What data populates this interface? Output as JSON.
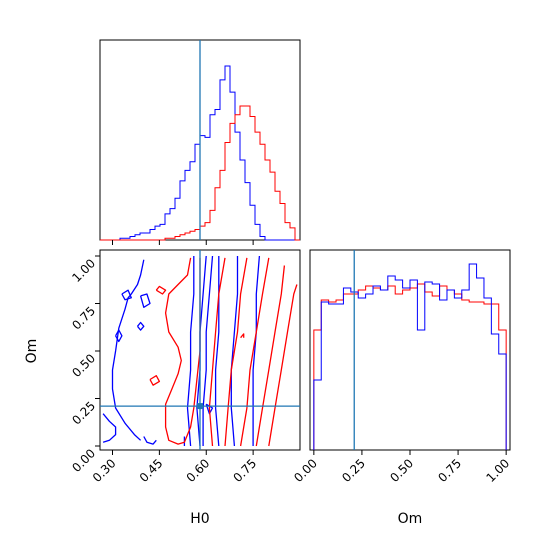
{
  "chart_data": [
    {
      "type": "histogram",
      "panel": "top-left",
      "x_param": "H0",
      "xlim": [
        0.26,
        0.9
      ],
      "truth": 0.58,
      "series": [
        {
          "color": "#0000ff",
          "bins_x": [
            0.26,
            0.9
          ],
          "step_y": [
            0.0,
            0.0,
            0.0,
            0.0,
            0.01,
            0.01,
            0.02,
            0.03,
            0.04,
            0.04,
            0.06,
            0.08,
            0.09,
            0.15,
            0.18,
            0.24,
            0.34,
            0.4,
            0.45,
            0.55,
            0.6,
            0.59,
            0.72,
            0.75,
            0.92,
            1.0,
            0.85,
            0.62,
            0.46,
            0.33,
            0.2,
            0.09,
            0.02,
            0.0,
            0.0,
            0.0,
            0.0,
            0.0,
            0.0,
            0.0
          ]
        },
        {
          "color": "#ff0000",
          "bins_x": [
            0.26,
            0.9
          ],
          "step_y": [
            0.0,
            0.0,
            0.0,
            0.0,
            0.0,
            0.0,
            0.0,
            0.0,
            0.0,
            0.0,
            0.0,
            0.0,
            0.0,
            0.01,
            0.01,
            0.02,
            0.03,
            0.04,
            0.05,
            0.06,
            0.08,
            0.1,
            0.17,
            0.3,
            0.4,
            0.56,
            0.67,
            0.72,
            0.77,
            0.77,
            0.71,
            0.62,
            0.55,
            0.46,
            0.39,
            0.28,
            0.21,
            0.1,
            0.07,
            0.0
          ]
        }
      ]
    },
    {
      "type": "contour",
      "panel": "bottom-left",
      "x_param": "H0",
      "y_param": "Om",
      "xlim": [
        0.26,
        0.9
      ],
      "ylim": [
        0.0,
        1.0
      ],
      "x_ticks": [
        "0.30",
        "0.45",
        "0.60",
        "0.75"
      ],
      "y_ticks": [
        "0.00",
        "0.25",
        "0.50",
        "0.75",
        "1.00"
      ],
      "xlabel": "H0",
      "ylabel": "Om",
      "truth": {
        "H0": 0.58,
        "Om": 0.21
      },
      "contours": [
        {
          "color": "#0000ff",
          "lines": [
            [
              [
                0.59,
                0.0
              ],
              [
                0.59,
                0.2
              ],
              [
                0.6,
                0.4
              ],
              [
                0.6,
                0.6
              ],
              [
                0.61,
                0.8
              ],
              [
                0.62,
                1.0
              ]
            ],
            [
              [
                0.58,
                0.0
              ],
              [
                0.57,
                0.2
              ],
              [
                0.58,
                0.4
              ],
              [
                0.58,
                0.6
              ],
              [
                0.59,
                0.8
              ],
              [
                0.6,
                1.0
              ]
            ],
            [
              [
                0.64,
                0.0
              ],
              [
                0.63,
                0.2
              ],
              [
                0.63,
                0.4
              ],
              [
                0.64,
                0.6
              ],
              [
                0.64,
                0.8
              ],
              [
                0.64,
                1.0
              ]
            ],
            [
              [
                0.69,
                0.0
              ],
              [
                0.68,
                0.2
              ],
              [
                0.68,
                0.4
              ],
              [
                0.69,
                0.6
              ],
              [
                0.7,
                0.8
              ],
              [
                0.7,
                1.0
              ]
            ],
            [
              [
                0.55,
                0.0
              ],
              [
                0.54,
                0.2
              ],
              [
                0.55,
                0.4
              ],
              [
                0.55,
                0.6
              ],
              [
                0.56,
                0.8
              ],
              [
                0.56,
                1.0
              ]
            ],
            [
              [
                0.75,
                0.0
              ],
              [
                0.75,
                0.2
              ],
              [
                0.75,
                0.4
              ],
              [
                0.76,
                0.6
              ],
              [
                0.76,
                0.8
              ],
              [
                0.77,
                1.0
              ]
            ],
            [
              [
                0.4,
                0.98
              ],
              [
                0.39,
                0.9
              ],
              [
                0.38,
                0.85
              ],
              [
                0.36,
                0.8
              ],
              [
                0.35,
                0.78
              ],
              [
                0.34,
                0.72
              ],
              [
                0.32,
                0.62
              ],
              [
                0.31,
                0.5
              ],
              [
                0.3,
                0.4
              ],
              [
                0.3,
                0.3
              ],
              [
                0.31,
                0.2
              ],
              [
                0.34,
                0.12
              ],
              [
                0.37,
                0.06
              ],
              [
                0.39,
                0.03
              ]
            ],
            [
              [
                0.27,
                0.17
              ],
              [
                0.29,
                0.13
              ],
              [
                0.31,
                0.1
              ],
              [
                0.31,
                0.06
              ],
              [
                0.29,
                0.03
              ],
              [
                0.27,
                0.02
              ]
            ],
            [
              [
                0.33,
                0.8
              ],
              [
                0.35,
                0.82
              ],
              [
                0.36,
                0.78
              ],
              [
                0.34,
                0.77
              ],
              [
                0.33,
                0.8
              ]
            ],
            [
              [
                0.39,
                0.79
              ],
              [
                0.41,
                0.8
              ],
              [
                0.42,
                0.75
              ],
              [
                0.4,
                0.73
              ],
              [
                0.39,
                0.79
              ]
            ],
            [
              [
                0.31,
                0.58
              ],
              [
                0.32,
                0.61
              ],
              [
                0.33,
                0.58
              ],
              [
                0.32,
                0.55
              ],
              [
                0.31,
                0.58
              ]
            ],
            [
              [
                0.38,
                0.63
              ],
              [
                0.39,
                0.65
              ],
              [
                0.4,
                0.63
              ],
              [
                0.39,
                0.61
              ],
              [
                0.38,
                0.63
              ]
            ],
            [
              [
                0.4,
                0.05
              ],
              [
                0.41,
                0.02
              ],
              [
                0.43,
                0.01
              ],
              [
                0.44,
                0.03
              ]
            ],
            [
              [
                0.53,
                0.05
              ],
              [
                0.53,
                0.0
              ]
            ],
            [
              [
                0.6,
                0.22
              ],
              [
                0.62,
                0.2
              ],
              [
                0.61,
                0.17
              ],
              [
                0.6,
                0.22
              ]
            ]
          ]
        },
        {
          "color": "#ff0000",
          "lines": [
            [
              [
                0.66,
                0.0
              ],
              [
                0.67,
                0.2
              ],
              [
                0.68,
                0.4
              ],
              [
                0.7,
                0.6
              ],
              [
                0.71,
                0.8
              ],
              [
                0.73,
                0.99
              ]
            ],
            [
              [
                0.71,
                0.0
              ],
              [
                0.73,
                0.2
              ],
              [
                0.74,
                0.4
              ],
              [
                0.76,
                0.6
              ],
              [
                0.78,
                0.8
              ],
              [
                0.8,
                0.99
              ]
            ],
            [
              [
                0.76,
                0.0
              ],
              [
                0.78,
                0.2
              ],
              [
                0.8,
                0.4
              ],
              [
                0.82,
                0.6
              ],
              [
                0.84,
                0.8
              ],
              [
                0.85,
                0.95
              ]
            ],
            [
              [
                0.8,
                0.0
              ],
              [
                0.82,
                0.2
              ],
              [
                0.84,
                0.4
              ],
              [
                0.86,
                0.6
              ],
              [
                0.88,
                0.8
              ],
              [
                0.89,
                0.85
              ]
            ],
            [
              [
                0.62,
                0.0
              ],
              [
                0.61,
                0.2
              ],
              [
                0.62,
                0.4
              ],
              [
                0.63,
                0.6
              ],
              [
                0.64,
                0.8
              ],
              [
                0.66,
                0.99
              ]
            ],
            [
              [
                0.55,
                0.99
              ],
              [
                0.54,
                0.9
              ],
              [
                0.51,
                0.85
              ],
              [
                0.48,
                0.8
              ],
              [
                0.47,
                0.7
              ],
              [
                0.48,
                0.6
              ],
              [
                0.51,
                0.52
              ],
              [
                0.52,
                0.45
              ],
              [
                0.51,
                0.38
              ],
              [
                0.49,
                0.3
              ],
              [
                0.47,
                0.22
              ],
              [
                0.47,
                0.1
              ],
              [
                0.48,
                0.03
              ],
              [
                0.51,
                0.01
              ],
              [
                0.53,
                0.02
              ],
              [
                0.55,
                0.1
              ],
              [
                0.56,
                0.2
              ],
              [
                0.57,
                0.35
              ],
              [
                0.58,
                0.5
              ],
              [
                0.58,
                0.7
              ],
              [
                0.58,
                0.85
              ],
              [
                0.58,
                0.99
              ]
            ],
            [
              [
                0.42,
                0.35
              ],
              [
                0.44,
                0.37
              ],
              [
                0.45,
                0.34
              ],
              [
                0.43,
                0.32
              ],
              [
                0.42,
                0.35
              ]
            ],
            [
              [
                0.44,
                0.82
              ],
              [
                0.45,
                0.84
              ],
              [
                0.47,
                0.82
              ],
              [
                0.46,
                0.8
              ],
              [
                0.44,
                0.82
              ]
            ],
            [
              [
                0.71,
                0.57
              ],
              [
                0.72,
                0.59
              ],
              [
                0.72,
                0.57
              ]
            ]
          ]
        }
      ]
    },
    {
      "type": "histogram",
      "panel": "bottom-right",
      "x_param": "Om",
      "xlim": [
        -0.02,
        1.02
      ],
      "x_ticks": [
        "0.00",
        "0.25",
        "0.50",
        "0.75",
        "1.00"
      ],
      "xlabel": "Om",
      "truth": 0.21,
      "series": [
        {
          "color": "#ff0000",
          "bins_x": [
            0.0,
            1.0
          ],
          "step_y": [
            0.6,
            0.75,
            0.74,
            0.75,
            0.78,
            0.78,
            0.8,
            0.82,
            0.81,
            0.8,
            0.82,
            0.78,
            0.8,
            0.81,
            0.83,
            0.79,
            0.77,
            0.82,
            0.8,
            0.78,
            0.75,
            0.74,
            0.74,
            0.73,
            0.73,
            0.6
          ]
        },
        {
          "color": "#0000ff",
          "bins_x": [
            0.0,
            1.0
          ],
          "step_y": [
            0.35,
            0.74,
            0.73,
            0.73,
            0.81,
            0.79,
            0.76,
            0.78,
            0.82,
            0.8,
            0.87,
            0.85,
            0.81,
            0.85,
            0.6,
            0.84,
            0.83,
            0.75,
            0.8,
            0.76,
            0.8,
            0.93,
            0.86,
            0.76,
            0.58,
            0.48
          ]
        }
      ]
    }
  ]
}
